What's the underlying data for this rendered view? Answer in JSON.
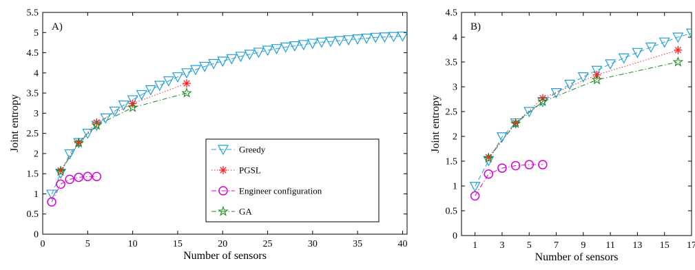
{
  "figure": {
    "legend": {
      "entries": [
        {
          "label": "Greedy",
          "color": "#1f9fd6",
          "marker": "triangle-down",
          "dash": "dashed"
        },
        {
          "label": "PGSL",
          "color": "#ff2020",
          "marker": "asterisk",
          "dash": "dotted"
        },
        {
          "label": "Engineer configuration",
          "color": "#d400d4",
          "marker": "circle",
          "dash": "dash-dot"
        },
        {
          "label": "GA",
          "color": "#1a8a1a",
          "marker": "pentagram",
          "dash": "dash-dot"
        }
      ],
      "placement": "lower-right (panel A)"
    }
  },
  "chart_data": [
    {
      "type": "line",
      "panel_label": "A)",
      "xlabel": "Number of sensors",
      "ylabel": "Joint entropy",
      "xlim": [
        0,
        40.5
      ],
      "ylim": [
        0,
        5.5
      ],
      "xticks": [
        0,
        5,
        10,
        15,
        20,
        25,
        30,
        35,
        40
      ],
      "yticks": [
        0,
        0.5,
        1,
        1.5,
        2,
        2.5,
        3,
        3.5,
        4,
        4.5,
        5,
        5.5
      ],
      "grid": false,
      "legend": true,
      "series": [
        {
          "name": "Greedy",
          "x": [
            1,
            2,
            3,
            4,
            5,
            6,
            7,
            8,
            9,
            10,
            11,
            12,
            13,
            14,
            15,
            16,
            17,
            18,
            19,
            20,
            21,
            22,
            23,
            24,
            25,
            26,
            27,
            28,
            29,
            30,
            31,
            32,
            33,
            34,
            35,
            36,
            37,
            38,
            39,
            40
          ],
          "y": [
            0.99,
            1.51,
            1.99,
            2.27,
            2.5,
            2.7,
            2.88,
            3.05,
            3.2,
            3.33,
            3.46,
            3.58,
            3.69,
            3.8,
            3.9,
            4.0,
            4.08,
            4.16,
            4.23,
            4.29,
            4.35,
            4.41,
            4.46,
            4.51,
            4.56,
            4.6,
            4.64,
            4.67,
            4.7,
            4.73,
            4.76,
            4.78,
            4.8,
            4.82,
            4.84,
            4.86,
            4.88,
            4.89,
            4.9,
            4.91
          ]
        },
        {
          "name": "PGSL",
          "x": [
            2,
            4,
            6,
            10,
            16
          ],
          "y": [
            1.58,
            2.27,
            2.77,
            3.24,
            3.74
          ]
        },
        {
          "name": "Engineer configuration",
          "x": [
            1,
            2,
            3,
            4,
            5,
            6
          ],
          "y": [
            0.8,
            1.24,
            1.36,
            1.41,
            1.43,
            1.43
          ]
        },
        {
          "name": "GA",
          "x": [
            2,
            4,
            6,
            10,
            16
          ],
          "y": [
            1.56,
            2.26,
            2.7,
            3.14,
            3.5
          ]
        }
      ]
    },
    {
      "type": "line",
      "panel_label": "B)",
      "xlabel": "Number of sensors",
      "ylabel": "Joint entropy",
      "xlim": [
        0,
        17
      ],
      "ylim": [
        0,
        4.5
      ],
      "xticks": [
        1,
        3,
        5,
        7,
        9,
        11,
        13,
        15,
        17
      ],
      "xtick_labels": [
        "1",
        "3",
        "5",
        "7",
        "9",
        "11",
        "13",
        "15",
        "17"
      ],
      "yticks": [
        0,
        0.5,
        1,
        1.5,
        2,
        2.5,
        3,
        3.5,
        4,
        4.5
      ],
      "grid": false,
      "legend": false,
      "series": [
        {
          "name": "Greedy",
          "x": [
            1,
            2,
            3,
            4,
            5,
            6,
            7,
            8,
            9,
            10,
            11,
            12,
            13,
            14,
            15,
            16,
            17
          ],
          "y": [
            0.99,
            1.51,
            1.99,
            2.27,
            2.5,
            2.7,
            2.88,
            3.05,
            3.2,
            3.33,
            3.46,
            3.58,
            3.69,
            3.8,
            3.9,
            4.0,
            4.08
          ]
        },
        {
          "name": "PGSL",
          "x": [
            2,
            4,
            6,
            10,
            16
          ],
          "y": [
            1.58,
            2.27,
            2.77,
            3.24,
            3.74
          ]
        },
        {
          "name": "Engineer configuration",
          "x": [
            1,
            2,
            3,
            4,
            5,
            6
          ],
          "y": [
            0.8,
            1.24,
            1.36,
            1.41,
            1.43,
            1.43
          ]
        },
        {
          "name": "GA",
          "x": [
            2,
            4,
            6,
            10,
            16
          ],
          "y": [
            1.56,
            2.26,
            2.7,
            3.14,
            3.5
          ]
        }
      ]
    }
  ]
}
